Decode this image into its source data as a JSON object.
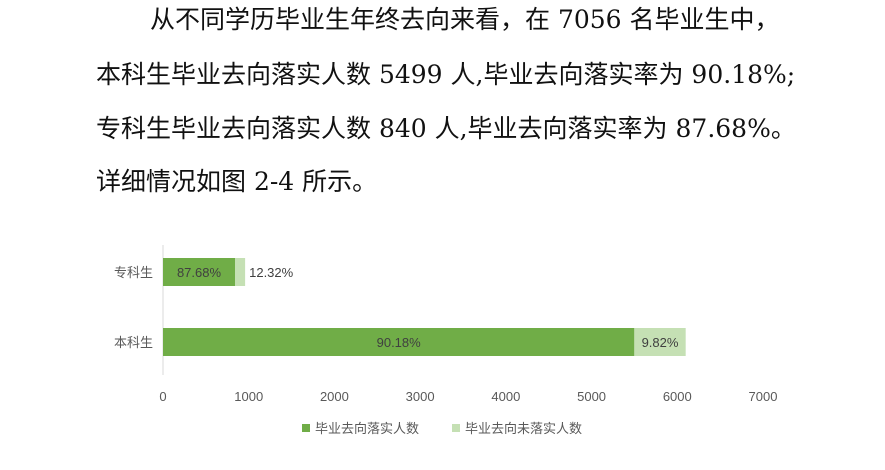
{
  "paragraph": {
    "lines": [
      "从不同学历毕业生年终去向来看，在 7056 名毕业生中，",
      "本科生毕业去向落实人数 5499 人,毕业去向落实率为 90.18%;",
      "专科生毕业去向落实人数 840 人,毕业去向落实率为 87.68%。",
      "详细情况如图 2-4 所示。"
    ]
  },
  "chart_data": {
    "type": "bar",
    "orientation": "horizontal",
    "stacked": true,
    "categories": [
      "专科生",
      "本科生"
    ],
    "series": [
      {
        "name": "毕业去向落实人数",
        "values": [
          840,
          5499
        ],
        "labels": [
          "87.68%",
          "90.18%"
        ],
        "color": "#70ad47"
      },
      {
        "name": "毕业去向未落实人数",
        "values": [
          118,
          599
        ],
        "labels": [
          "12.32%",
          "9.82%"
        ],
        "color": "#c5e0b4"
      }
    ],
    "xlim": [
      0,
      7000
    ],
    "xticks": [
      "0",
      "1000",
      "2000",
      "3000",
      "4000",
      "5000",
      "6000",
      "7000"
    ],
    "grid": false,
    "legend": "bottom"
  }
}
